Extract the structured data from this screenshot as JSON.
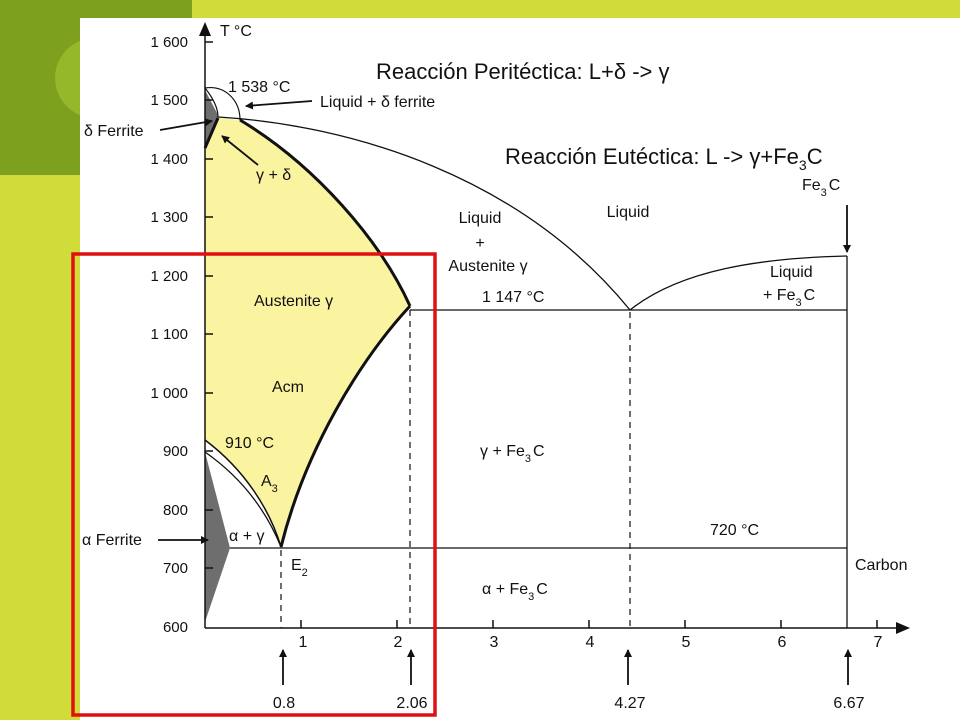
{
  "colors": {
    "slide_dark_green": "#7da11e",
    "slide_light_green": "#cfdc3a",
    "austenite_fill": "#faf3a0",
    "ferrite_fill": "#6e6e6e",
    "highlight_box": "#e01010"
  },
  "titles": {
    "peritectic": "Reacción Peritéctica: L+δ -> γ",
    "eutectic_pre": "Reacción Eutéctica: L -> γ+Fe",
    "eutectic_sub": "3",
    "eutectic_post": "C"
  },
  "axes": {
    "y_unit": "T °C",
    "y_ticks": [
      "1 600",
      "1 500",
      "1 400",
      "1 300",
      "1 200",
      "1 100",
      "1 000",
      "900",
      "800",
      "700",
      "600"
    ],
    "x_ticks": [
      "1",
      "2",
      "3",
      "4",
      "5",
      "6",
      "7"
    ],
    "x_label": "Carbon",
    "markers": [
      "0.8",
      "2.06",
      "4.27",
      "6.67"
    ]
  },
  "labels": {
    "t1538": "1 538 °C",
    "liquid_delta": "Liquid + δ ferrite",
    "delta_ferrite": "δ Ferrite",
    "gamma_delta": "γ + δ",
    "liquid_austenite_1": "Liquid",
    "liquid_austenite_2": "+",
    "liquid_austenite_3": "Austenite γ",
    "liquid": "Liquid",
    "fe3c_top_main": "Fe",
    "fe3c_top_sub": "3",
    "fe3c_top_end": "C",
    "liquid_fe3c_1": "Liquid",
    "liquid_fe3c_2_main": "+ Fe",
    "liquid_fe3c_2_sub": "3",
    "liquid_fe3c_2_end": "C",
    "austenite": "Austenite γ",
    "t1147": "1 147 °C",
    "acm": "Acm",
    "t910": "910 °C",
    "a3_main": "A",
    "a3_sub": "3",
    "gamma_fe3c_main": "γ + Fe",
    "gamma_fe3c_sub": "3",
    "gamma_fe3c_end": "C",
    "t720": "720 °C",
    "alpha_gamma": "α + γ",
    "alpha_ferrite": "α Ferrite",
    "e2_main": "E",
    "e2_sub": "2",
    "alpha_fe3c_main": "α + Fe",
    "alpha_fe3c_sub": "3",
    "alpha_fe3c_end": "C"
  }
}
